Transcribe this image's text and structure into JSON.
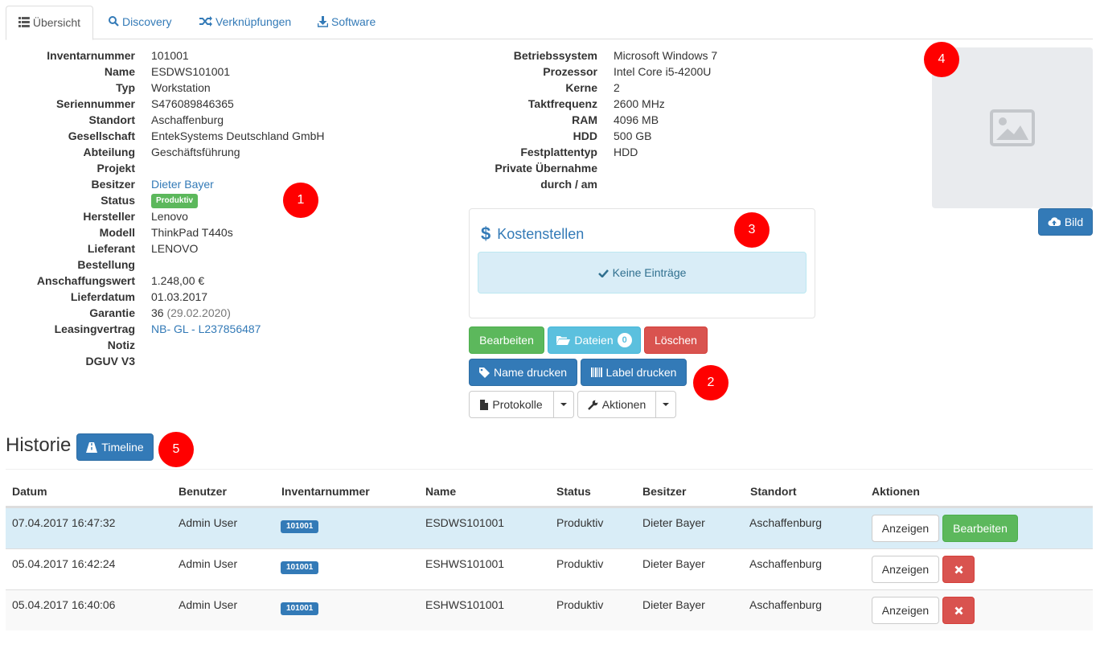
{
  "tabs": [
    {
      "label": "Übersicht",
      "icon": "list-icon",
      "active": true
    },
    {
      "label": "Discovery",
      "icon": "search-icon",
      "active": false
    },
    {
      "label": "Verknüpfungen",
      "icon": "random-icon",
      "active": false
    },
    {
      "label": "Software",
      "icon": "download-icon",
      "active": false
    }
  ],
  "info_left": {
    "inventarnummer": {
      "key": "Inventarnummer",
      "value": "101001"
    },
    "name": {
      "key": "Name",
      "value": "ESDWS101001"
    },
    "typ": {
      "key": "Typ",
      "value": "Workstation"
    },
    "seriennummer": {
      "key": "Seriennummer",
      "value": "S476089846365"
    },
    "standort": {
      "key": "Standort",
      "value": "Aschaffenburg"
    },
    "gesellschaft": {
      "key": "Gesellschaft",
      "value": "EntekSystems Deutschland GmbH"
    },
    "abteilung": {
      "key": "Abteilung",
      "value": "Geschäftsführung"
    },
    "projekt": {
      "key": "Projekt",
      "value": ""
    },
    "besitzer": {
      "key": "Besitzer",
      "value": "Dieter Bayer"
    },
    "status": {
      "key": "Status",
      "value": "Produktiv"
    },
    "hersteller": {
      "key": "Hersteller",
      "value": "Lenovo"
    },
    "modell": {
      "key": "Modell",
      "value": "ThinkPad T440s"
    },
    "lieferant": {
      "key": "Lieferant",
      "value": "LENOVO"
    },
    "bestellung": {
      "key": "Bestellung",
      "value": ""
    },
    "anschaffungswert": {
      "key": "Anschaffungswert",
      "value": "1.248,00 €"
    },
    "lieferdatum": {
      "key": "Lieferdatum",
      "value": "01.03.2017"
    },
    "garantie": {
      "key": "Garantie",
      "value": "36",
      "date": "(29.02.2020)"
    },
    "leasingvertrag": {
      "key": "Leasingvertrag",
      "value": "NB- GL - L237856487"
    },
    "notiz": {
      "key": "Notiz",
      "value": ""
    },
    "dguv": {
      "key": "DGUV V3",
      "value": ""
    }
  },
  "info_right": {
    "betriebssystem": {
      "key": "Betriebssystem",
      "value": "Microsoft Windows 7"
    },
    "prozessor": {
      "key": "Prozessor",
      "value": "Intel Core i5-4200U"
    },
    "kerne": {
      "key": "Kerne",
      "value": "2"
    },
    "taktfrequenz": {
      "key": "Taktfrequenz",
      "value": "2600 MHz"
    },
    "ram": {
      "key": "RAM",
      "value": "4096 MB"
    },
    "hdd": {
      "key": "HDD",
      "value": "500 GB"
    },
    "festplattentyp": {
      "key": "Festplattentyp",
      "value": "HDD"
    },
    "private_uebernahme": {
      "key": "Private Übernahme",
      "value": ""
    },
    "durch_am": {
      "key": "durch / am",
      "value": ""
    }
  },
  "markers": [
    "1",
    "2",
    "3",
    "4",
    "5"
  ],
  "kostenstellen": {
    "title": "Kostenstellen",
    "empty": "Keine Einträge"
  },
  "image": {
    "button": "Bild"
  },
  "actions": {
    "edit": "Bearbeiten",
    "files": "Dateien",
    "files_count": "0",
    "delete": "Löschen",
    "print_name": "Name drucken",
    "print_label": "Label drucken",
    "protocols": "Protokolle",
    "actions": "Aktionen"
  },
  "history": {
    "title": "Historie",
    "timeline_button": "Timeline",
    "columns": [
      "Datum",
      "Benutzer",
      "Inventarnummer",
      "Name",
      "Status",
      "Besitzer",
      "Standort",
      "Aktionen"
    ],
    "rows": [
      {
        "datum": "07.04.2017 16:47:32",
        "benutzer": "Admin User",
        "inventarnummer": "101001",
        "name": "ESDWS101001",
        "status": "Produktiv",
        "besitzer": "Dieter Bayer",
        "standort": "Aschaffenburg",
        "view": "Anzeigen",
        "edit": "Bearbeiten"
      },
      {
        "datum": "05.04.2017 16:42:24",
        "benutzer": "Admin User",
        "inventarnummer": "101001",
        "name": "ESHWS101001",
        "status": "Produktiv",
        "besitzer": "Dieter Bayer",
        "standort": "Aschaffenburg",
        "view": "Anzeigen"
      },
      {
        "datum": "05.04.2017 16:40:06",
        "benutzer": "Admin User",
        "inventarnummer": "101001",
        "name": "ESHWS101001",
        "status": "Produktiv",
        "besitzer": "Dieter Bayer",
        "standort": "Aschaffenburg",
        "view": "Anzeigen"
      }
    ]
  },
  "colors": {
    "primary": "#337ab7",
    "success": "#5cb85c",
    "danger": "#d9534f",
    "info": "#5bc0de",
    "marker": "#ff0000",
    "row_highlight": "#d9edf7"
  }
}
